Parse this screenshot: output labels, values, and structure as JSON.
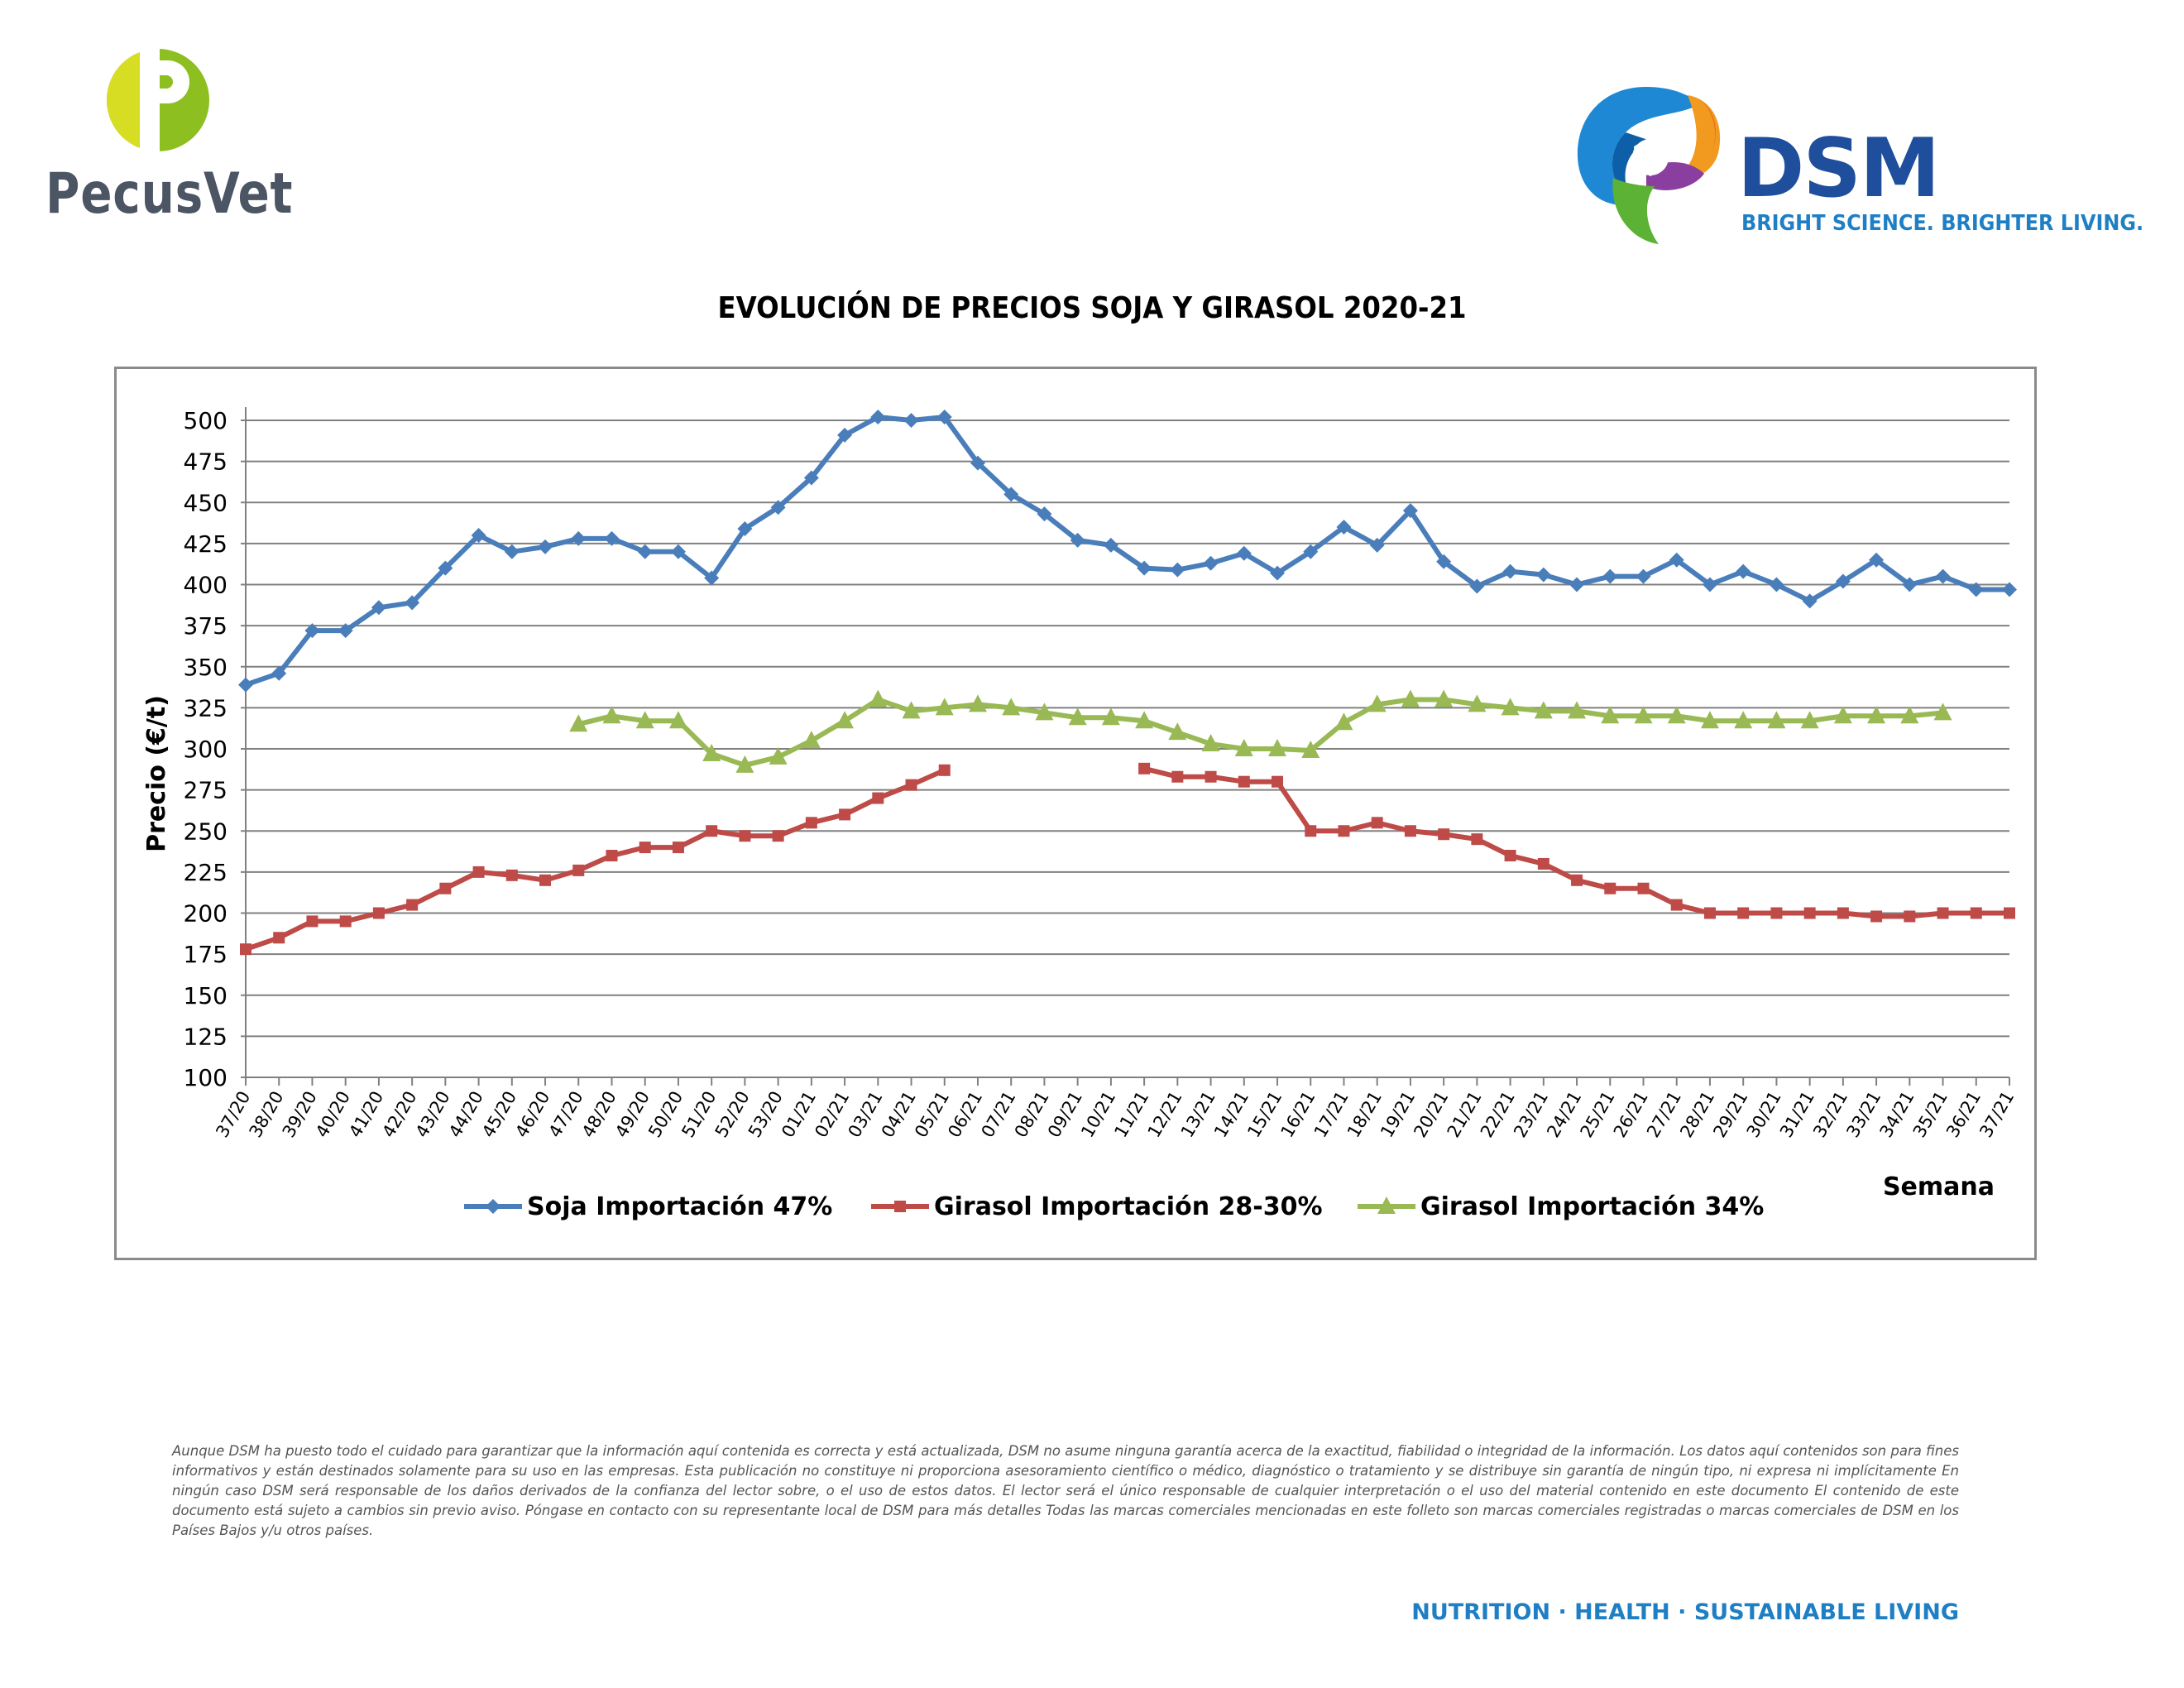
{
  "header": {
    "left_logo_text": "PecusVet",
    "right_logo_text": "DSM",
    "right_logo_tagline": "BRIGHT SCIENCE. BRIGHTER LIVING."
  },
  "chart_title": "EVOLUCIÓN DE PRECIOS SOJA Y GIRASOL 2020-21",
  "chart_data": {
    "type": "line",
    "title": "EVOLUCIÓN DE PRECIOS SOJA Y GIRASOL 2020-21",
    "xlabel": "Semana",
    "ylabel": "Precio (€/t)",
    "ylim": [
      100,
      500
    ],
    "yticks": [
      100,
      125,
      150,
      175,
      200,
      225,
      250,
      275,
      300,
      325,
      350,
      375,
      400,
      425,
      450,
      475,
      500
    ],
    "grid": true,
    "legend_position": "bottom",
    "categories": [
      "37/20",
      "38/20",
      "39/20",
      "40/20",
      "41/20",
      "42/20",
      "43/20",
      "44/20",
      "45/20",
      "46/20",
      "47/20",
      "48/20",
      "49/20",
      "50/20",
      "51/20",
      "52/20",
      "53/20",
      "01/21",
      "02/21",
      "03/21",
      "04/21",
      "05/21",
      "06/21",
      "07/21",
      "08/21",
      "09/21",
      "10/21",
      "11/21",
      "12/21",
      "13/21",
      "14/21",
      "15/21",
      "16/21",
      "17/21",
      "18/21",
      "19/21",
      "20/21",
      "21/21",
      "22/21",
      "23/21",
      "24/21",
      "25/21",
      "26/21",
      "27/21",
      "28/21",
      "29/21",
      "30/21",
      "31/21",
      "32/21",
      "33/21",
      "34/21",
      "35/21",
      "36/21",
      "37/21"
    ],
    "series": [
      {
        "name": "Soja Importación 47%",
        "color": "#4a7ebb",
        "marker": "diamond",
        "values": [
          339,
          346,
          372,
          372,
          386,
          389,
          410,
          430,
          420,
          423,
          428,
          428,
          420,
          420,
          404,
          434,
          447,
          465,
          491,
          502,
          500,
          502,
          474,
          455,
          443,
          427,
          424,
          410,
          409,
          413,
          419,
          407,
          420,
          435,
          424,
          445,
          414,
          399,
          408,
          406,
          400,
          405,
          405,
          415,
          400,
          408,
          400,
          390,
          402,
          415,
          400,
          405,
          397,
          397
        ]
      },
      {
        "name": "Girasol Importación 28-30%",
        "color": "#be4b48",
        "marker": "square",
        "values": [
          178,
          185,
          195,
          195,
          200,
          205,
          215,
          225,
          223,
          220,
          226,
          235,
          240,
          240,
          250,
          247,
          247,
          255,
          260,
          270,
          278,
          287,
          null,
          null,
          null,
          null,
          null,
          288,
          283,
          283,
          280,
          280,
          250,
          250,
          255,
          250,
          248,
          245,
          235,
          230,
          220,
          215,
          215,
          205,
          200,
          200,
          200,
          200,
          200,
          198,
          198,
          200,
          200,
          200
        ]
      },
      {
        "name": "Girasol Importación 34%",
        "color": "#98b954",
        "marker": "triangle",
        "values": [
          null,
          null,
          null,
          null,
          null,
          null,
          null,
          null,
          null,
          null,
          315,
          320,
          317,
          317,
          297,
          290,
          295,
          305,
          317,
          330,
          323,
          325,
          327,
          325,
          322,
          319,
          319,
          317,
          310,
          303,
          300,
          300,
          299,
          316,
          327,
          330,
          330,
          327,
          325,
          323,
          323,
          320,
          320,
          320,
          317,
          317,
          317,
          317,
          320,
          320,
          320,
          322,
          null,
          null
        ]
      }
    ]
  },
  "disclaimer": "Aunque DSM ha puesto todo el cuidado para garantizar que la información aquí contenida es correcta y está actualizada, DSM no asume ninguna garantía acerca de la exactitud, fiabilidad o integridad de la información. Los datos aquí contenidos son para fines informativos y están destinados solamente para su uso en las empresas. Esta publicación no constituye ni proporciona asesoramiento científico o médico, diagnóstico o tratamiento y se distribuye sin garantía de ningún tipo, ni expresa ni implícitamente En ningún caso DSM será responsable de los daños derivados de la confianza del lector sobre, o el uso de estos datos. El lector será el único responsable de cualquier interpretación o el uso del material contenido en este documento El contenido de este documento está sujeto a cambios sin previo aviso. Póngase en contacto con su representante local de DSM para más detalles Todas las marcas comerciales mencionadas en este folleto son marcas comerciales registradas o marcas comerciales de DSM en los Países Bajos y/u otros países.",
  "footer_tagline": "NUTRITION · HEALTH · SUSTAINABLE LIVING"
}
